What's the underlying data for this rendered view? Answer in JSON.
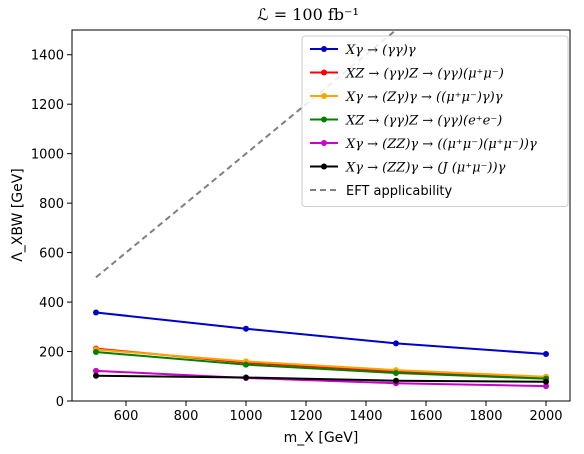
{
  "chart_data": {
    "type": "line",
    "title": "ℒ = 100 fb⁻¹",
    "xlabel": "m_X [GeV]",
    "ylabel": "Λ_XBW [GeV]",
    "xlim": [
      420,
      2080
    ],
    "ylim": [
      0,
      1500
    ],
    "xticks": [
      600,
      800,
      1000,
      1200,
      1400,
      1600,
      1800,
      2000
    ],
    "yticks": [
      0,
      200,
      400,
      600,
      800,
      1000,
      1200,
      1400
    ],
    "legend_position": "top-right",
    "series": [
      {
        "name": "Xγ → (γγ)γ",
        "color": "#0000cc",
        "dashed": false,
        "markers": true,
        "x": [
          500,
          1000,
          1500,
          2000
        ],
        "y": [
          358,
          292,
          233,
          190
        ]
      },
      {
        "name": "XZ → (γγ)Z → (γγ)(μ⁺μ⁻)",
        "color": "#ff0000",
        "dashed": false,
        "markers": true,
        "x": [
          500,
          1000,
          1500,
          2000
        ],
        "y": [
          212,
          155,
          120,
          95
        ]
      },
      {
        "name": "Xγ → (Zγ)γ → ((μ⁺μ⁻)γ)γ",
        "color": "#ffa500",
        "dashed": false,
        "markers": true,
        "x": [
          500,
          1000,
          1500,
          2000
        ],
        "y": [
          208,
          160,
          125,
          98
        ]
      },
      {
        "name": "XZ → (γγ)Z → (γγ)(e⁺e⁻)",
        "color": "#008000",
        "dashed": false,
        "markers": true,
        "x": [
          500,
          1000,
          1500,
          2000
        ],
        "y": [
          198,
          147,
          113,
          90
        ]
      },
      {
        "name": "Xγ → (ZZ)γ → ((μ⁺μ⁻)(μ⁺μ⁻))γ",
        "color": "#cc00cc",
        "dashed": false,
        "markers": true,
        "x": [
          500,
          1000,
          1500,
          2000
        ],
        "y": [
          122,
          93,
          72,
          60
        ]
      },
      {
        "name": "Xγ → (ZZ)γ → (J (μ⁺μ⁻))γ",
        "color": "#000000",
        "dashed": false,
        "markers": true,
        "x": [
          500,
          1000,
          1500,
          2000
        ],
        "y": [
          102,
          95,
          82,
          78
        ]
      },
      {
        "name": "EFT applicability",
        "color": "#808080",
        "dashed": true,
        "markers": false,
        "x": [
          500,
          1500
        ],
        "y": [
          500,
          1500
        ]
      }
    ]
  }
}
